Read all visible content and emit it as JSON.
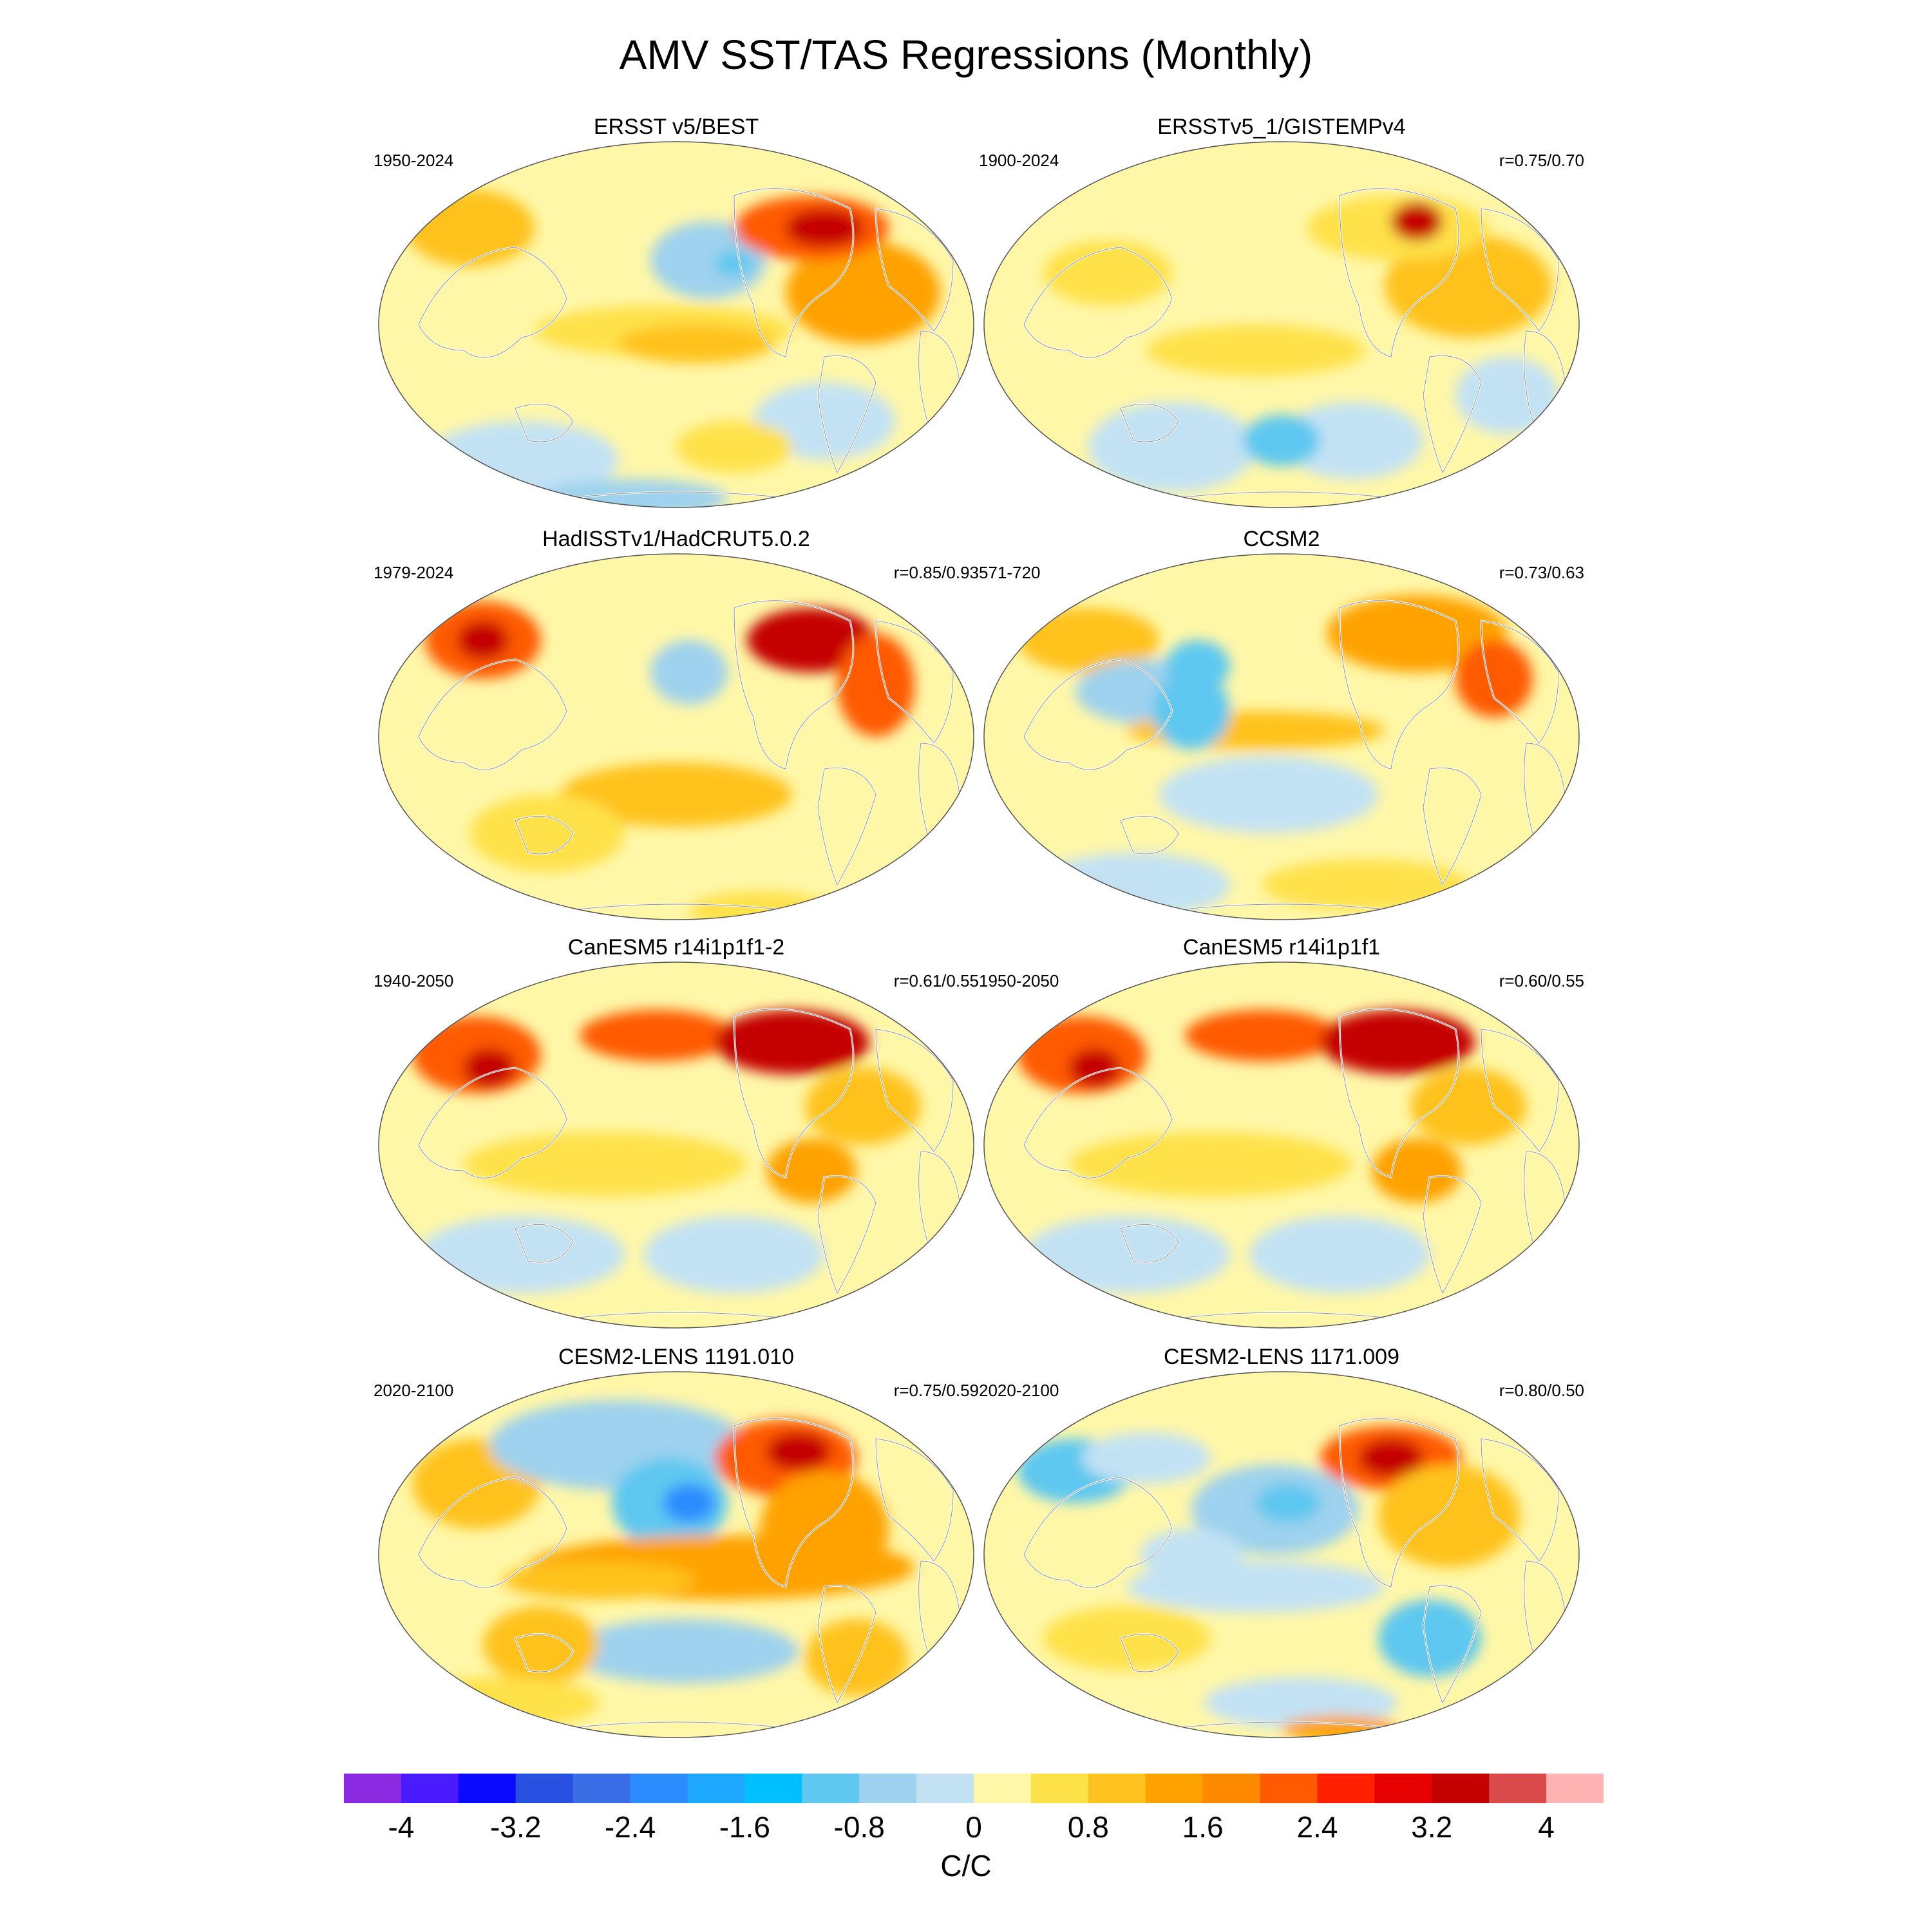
{
  "title": "AMV SST/TAS Regressions (Monthly)",
  "panels": [
    {
      "title": "ERSST v5/BEST",
      "period": "1950-2024",
      "corr": ""
    },
    {
      "title": "ERSSTv5_1/GISTEMPv4",
      "period": "1900-2024",
      "corr": "r=0.75/0.70"
    },
    {
      "title": "HadISSTv1/HadCRUT5.0.2",
      "period": "1979-2024",
      "corr": "r=0.85/0.93"
    },
    {
      "title": "CCSM2",
      "period": "571-720",
      "corr": "r=0.73/0.63"
    },
    {
      "title": "CanESM5 r14i1p1f1-2",
      "period": "1940-2050",
      "corr": "r=0.61/0.55"
    },
    {
      "title": "CanESM5 r14i1p1f1",
      "period": "1950-2050",
      "corr": "r=0.60/0.55"
    },
    {
      "title": "CESM2-LENS 1191.010",
      "period": "2020-2100",
      "corr": "r=0.75/0.59"
    },
    {
      "title": "CESM2-LENS 1171.009",
      "period": "2020-2100",
      "corr": "r=0.80/0.50"
    }
  ],
  "colorbar": {
    "tick_labels": [
      "-4",
      "-3.2",
      "-2.4",
      "-1.6",
      "-0.8",
      "0",
      "0.8",
      "1.6",
      "2.4",
      "3.2",
      "4"
    ],
    "units": "C/C",
    "colors": [
      "#8a2be2",
      "#4b1bff",
      "#0a0aff",
      "#2850e0",
      "#3a6ee6",
      "#2b8cff",
      "#1ea8ff",
      "#00c0ff",
      "#5ec8f0",
      "#9ed2ee",
      "#c2e2f4",
      "#fff7a8",
      "#ffe14a",
      "#ffc21f",
      "#ffa200",
      "#ff8a00",
      "#ff5a00",
      "#ff2000",
      "#e60000",
      "#c40000",
      "#db4a4a",
      "#ffb3b3"
    ]
  }
}
